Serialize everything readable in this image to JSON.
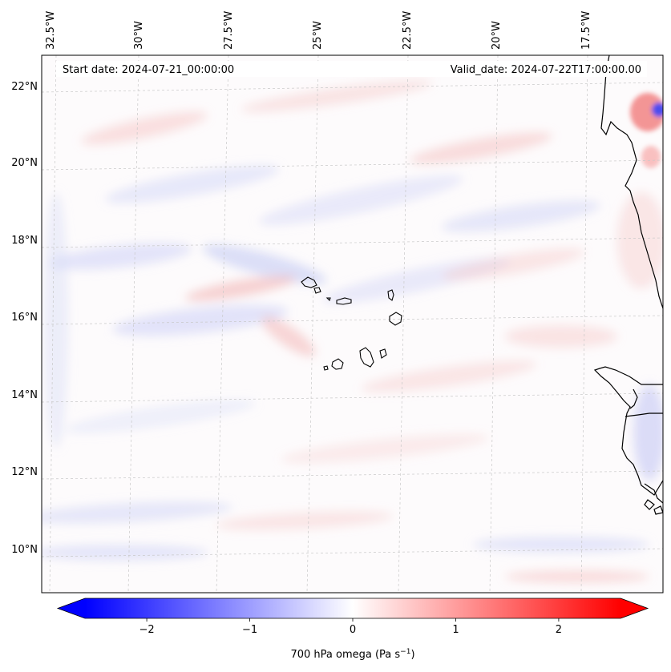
{
  "map": {
    "start_label": "Start date: 2024-07-21_00:00:00",
    "valid_label": "Valid_date: 2024-07-22T17:00:00.00",
    "longitude_labels": [
      "32.5°W",
      "30°W",
      "27.5°W",
      "25°W",
      "22.5°W",
      "20°W",
      "17.5°W"
    ],
    "latitude_labels": [
      "22°N",
      "20°N",
      "18°N",
      "16°N",
      "14°N",
      "12°N",
      "10°N"
    ],
    "field": "700 hPa omega",
    "units": "Pa s⁻¹"
  },
  "colorbar": {
    "label_main": "700 hPa omega (Pa s",
    "label_exp": "−1",
    "label_end": ")",
    "min": -2.6,
    "max": 2.6,
    "tick_values": [
      -2,
      -1,
      0,
      1,
      2
    ],
    "tick_labels": [
      "−2",
      "−1",
      "0",
      "1",
      "2"
    ],
    "colormap": "bwr",
    "low_color": "#0000ff",
    "mid_color": "#ffffff",
    "high_color": "#ff0000"
  },
  "colors": {
    "coastline": "#000000",
    "gridline": "#c8c8c8",
    "background": "#ffffff"
  }
}
